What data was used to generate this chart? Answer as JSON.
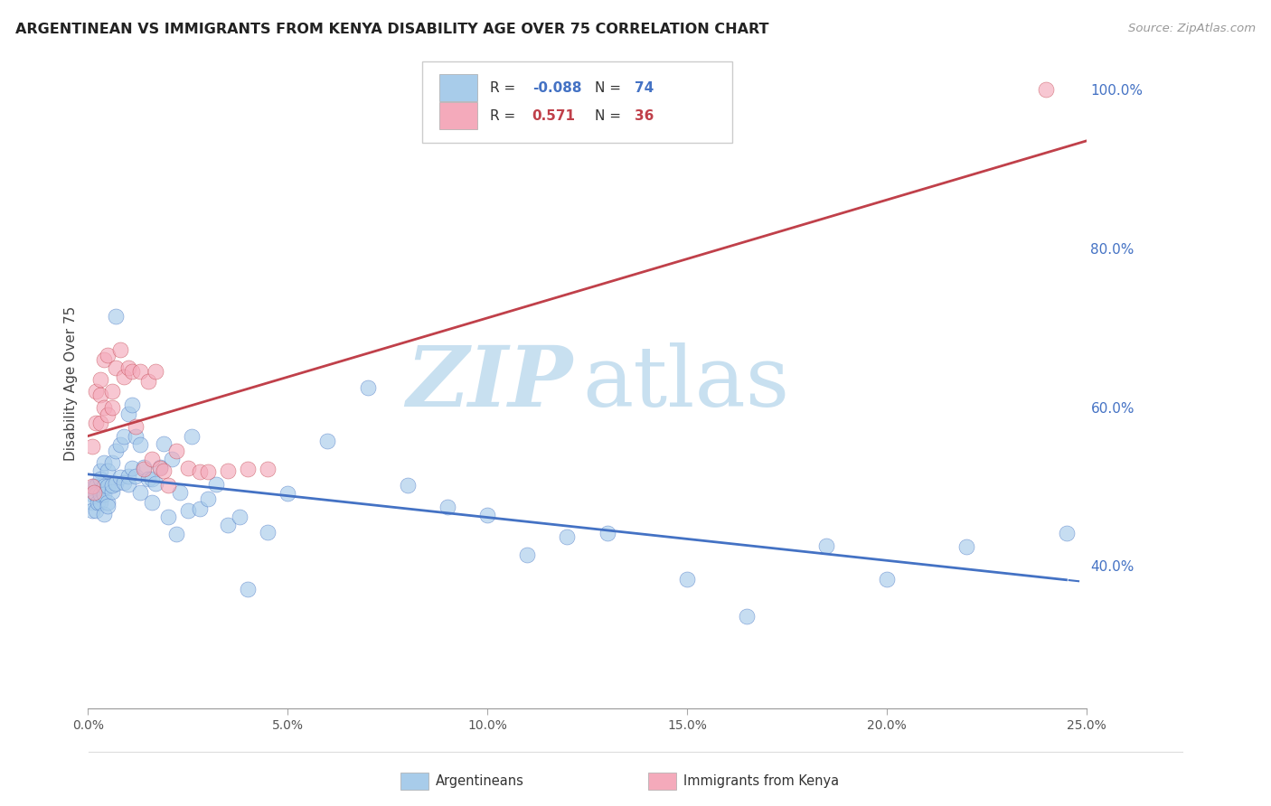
{
  "title": "ARGENTINEAN VS IMMIGRANTS FROM KENYA DISABILITY AGE OVER 75 CORRELATION CHART",
  "source": "Source: ZipAtlas.com",
  "ylabel": "Disability Age Over 75",
  "x_min": 0.0,
  "x_max": 0.25,
  "y_min": 0.22,
  "y_max": 1.04,
  "blue_label": "Argentineans",
  "pink_label": "Immigrants from Kenya",
  "blue_R": -0.088,
  "blue_N": 74,
  "pink_R": 0.571,
  "pink_N": 36,
  "blue_color": "#A8CCEA",
  "pink_color": "#F4AABB",
  "blue_line_color": "#4472C4",
  "pink_line_color": "#C0404A",
  "right_tick_color": "#4472C4",
  "watermark_color": "#C8E0F0",
  "xtick_vals": [
    0.0,
    0.05,
    0.1,
    0.15,
    0.2,
    0.25
  ],
  "xtick_labels": [
    "0.0%",
    "5.0%",
    "10.0%",
    "15.0%",
    "20.0%",
    "25.0%"
  ],
  "right_yticks": [
    0.4,
    0.6,
    0.8,
    1.0
  ],
  "right_ylabels": [
    "40.0%",
    "60.0%",
    "80.0%",
    "100.0%"
  ],
  "blue_x": [
    0.001,
    0.001,
    0.001,
    0.0015,
    0.002,
    0.002,
    0.002,
    0.0025,
    0.003,
    0.003,
    0.003,
    0.003,
    0.004,
    0.004,
    0.004,
    0.004,
    0.005,
    0.005,
    0.005,
    0.005,
    0.006,
    0.006,
    0.006,
    0.007,
    0.007,
    0.007,
    0.008,
    0.008,
    0.009,
    0.009,
    0.01,
    0.01,
    0.01,
    0.011,
    0.011,
    0.012,
    0.012,
    0.013,
    0.013,
    0.014,
    0.015,
    0.016,
    0.016,
    0.017,
    0.018,
    0.019,
    0.02,
    0.021,
    0.022,
    0.023,
    0.025,
    0.026,
    0.028,
    0.03,
    0.032,
    0.035,
    0.038,
    0.04,
    0.045,
    0.05,
    0.06,
    0.07,
    0.08,
    0.09,
    0.1,
    0.11,
    0.12,
    0.13,
    0.15,
    0.165,
    0.185,
    0.2,
    0.22,
    0.245
  ],
  "blue_y": [
    0.49,
    0.48,
    0.47,
    0.5,
    0.5,
    0.47,
    0.49,
    0.48,
    0.52,
    0.48,
    0.51,
    0.49,
    0.5,
    0.465,
    0.53,
    0.49,
    0.5,
    0.48,
    0.475,
    0.52,
    0.53,
    0.494,
    0.502,
    0.545,
    0.715,
    0.504,
    0.553,
    0.512,
    0.563,
    0.505,
    0.592,
    0.513,
    0.503,
    0.603,
    0.523,
    0.563,
    0.513,
    0.553,
    0.493,
    0.524,
    0.51,
    0.51,
    0.48,
    0.504,
    0.524,
    0.554,
    0.462,
    0.534,
    0.44,
    0.492,
    0.47,
    0.563,
    0.472,
    0.484,
    0.503,
    0.451,
    0.462,
    0.371,
    0.442,
    0.491,
    0.557,
    0.624,
    0.502,
    0.474,
    0.464,
    0.414,
    0.437,
    0.441,
    0.383,
    0.336,
    0.425,
    0.383,
    0.424,
    0.441
  ],
  "pink_x": [
    0.001,
    0.001,
    0.0015,
    0.002,
    0.002,
    0.003,
    0.003,
    0.003,
    0.004,
    0.004,
    0.005,
    0.005,
    0.006,
    0.006,
    0.007,
    0.008,
    0.009,
    0.01,
    0.011,
    0.012,
    0.013,
    0.014,
    0.015,
    0.016,
    0.017,
    0.018,
    0.019,
    0.02,
    0.022,
    0.025,
    0.028,
    0.03,
    0.035,
    0.04,
    0.045,
    0.24
  ],
  "pink_y": [
    0.5,
    0.55,
    0.492,
    0.58,
    0.62,
    0.615,
    0.58,
    0.635,
    0.6,
    0.66,
    0.59,
    0.665,
    0.6,
    0.62,
    0.65,
    0.672,
    0.638,
    0.65,
    0.645,
    0.575,
    0.645,
    0.522,
    0.632,
    0.534,
    0.645,
    0.523,
    0.52,
    0.502,
    0.545,
    0.523,
    0.519,
    0.519,
    0.52,
    0.522,
    0.522,
    1.0
  ]
}
